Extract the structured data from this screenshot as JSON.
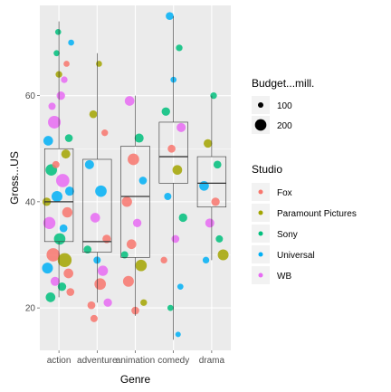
{
  "chart_data": {
    "type": "scatter",
    "subtype": "jitter-with-boxplot",
    "xlabel": "Genre",
    "ylabel": "Gross...US",
    "categories": [
      "action",
      "adventure",
      "animation",
      "comedy",
      "drama"
    ],
    "y_ticks": [
      20,
      40,
      60
    ],
    "ylim": [
      12,
      77
    ],
    "grid": true,
    "legend_position": "right",
    "size_legend": {
      "title": "Budget...mill.",
      "entries": [
        {
          "label": "100",
          "value": 100
        },
        {
          "label": "200",
          "value": 200
        }
      ]
    },
    "color_legend": {
      "title": "Studio",
      "entries": [
        {
          "label": "Fox",
          "color": "#F8766D"
        },
        {
          "label": "Paramount Pictures",
          "color": "#A3A500"
        },
        {
          "label": "Sony",
          "color": "#00BF7D"
        },
        {
          "label": "Universal",
          "color": "#00B0F6"
        },
        {
          "label": "WB",
          "color": "#E76BF3"
        }
      ]
    },
    "boxplots": [
      {
        "category": "action",
        "min": 22,
        "q1": 32.5,
        "median": 40,
        "q3": 50,
        "max": 74
      },
      {
        "category": "adventure",
        "min": 21,
        "q1": 30.5,
        "median": 32.5,
        "q3": 48,
        "max": 68
      },
      {
        "category": "animation",
        "min": 18.5,
        "q1": 29.5,
        "median": 41,
        "q3": 50.5,
        "max": 60
      },
      {
        "category": "comedy",
        "min": 14,
        "q1": 43.5,
        "median": 48.5,
        "q3": 55,
        "max": 75
      },
      {
        "category": "drama",
        "min": 29,
        "q1": 39,
        "median": 43.5,
        "q3": 48.5,
        "max": 60
      }
    ],
    "points": [
      {
        "category": "action",
        "offset": -0.28,
        "y": 51.5,
        "studio": "Universal",
        "budget": 170
      },
      {
        "category": "action",
        "offset": -0.12,
        "y": 55,
        "studio": "WB",
        "budget": 220
      },
      {
        "category": "action",
        "offset": 0.05,
        "y": 60,
        "studio": "WB",
        "budget": 150
      },
      {
        "category": "action",
        "offset": 0.18,
        "y": 49,
        "studio": "Paramount Pictures",
        "budget": 160
      },
      {
        "category": "action",
        "offset": -0.2,
        "y": 46,
        "studio": "Sony",
        "budget": 200
      },
      {
        "category": "action",
        "offset": 0.1,
        "y": 44,
        "studio": "WB",
        "budget": 230
      },
      {
        "category": "action",
        "offset": -0.05,
        "y": 41,
        "studio": "Universal",
        "budget": 190
      },
      {
        "category": "action",
        "offset": 0.22,
        "y": 38,
        "studio": "Fox",
        "budget": 180
      },
      {
        "category": "action",
        "offset": -0.25,
        "y": 36,
        "studio": "WB",
        "budget": 210
      },
      {
        "category": "action",
        "offset": 0.02,
        "y": 33,
        "studio": "Sony",
        "budget": 200
      },
      {
        "category": "action",
        "offset": -0.15,
        "y": 30,
        "studio": "Fox",
        "budget": 230
      },
      {
        "category": "action",
        "offset": 0.15,
        "y": 29,
        "studio": "Paramount Pictures",
        "budget": 240
      },
      {
        "category": "action",
        "offset": -0.3,
        "y": 27.5,
        "studio": "Universal",
        "budget": 190
      },
      {
        "category": "action",
        "offset": 0.25,
        "y": 26.5,
        "studio": "Fox",
        "budget": 170
      },
      {
        "category": "action",
        "offset": -0.1,
        "y": 25,
        "studio": "WB",
        "budget": 160
      },
      {
        "category": "action",
        "offset": 0.08,
        "y": 24,
        "studio": "Sony",
        "budget": 150
      },
      {
        "category": "action",
        "offset": -0.22,
        "y": 22,
        "studio": "Sony",
        "budget": 170
      },
      {
        "category": "action",
        "offset": 0.3,
        "y": 23,
        "studio": "Fox",
        "budget": 140
      },
      {
        "category": "action",
        "offset": 0.28,
        "y": 42,
        "studio": "Universal",
        "budget": 160
      },
      {
        "category": "action",
        "offset": -0.32,
        "y": 40,
        "studio": "Paramount Pictures",
        "budget": 150
      },
      {
        "category": "action",
        "offset": 0.12,
        "y": 35,
        "studio": "Universal",
        "budget": 140
      },
      {
        "category": "action",
        "offset": -0.08,
        "y": 47,
        "studio": "Fox",
        "budget": 130
      },
      {
        "category": "action",
        "offset": 0.26,
        "y": 52,
        "studio": "Sony",
        "budget": 140
      },
      {
        "category": "action",
        "offset": -0.18,
        "y": 58,
        "studio": "WB",
        "budget": 130
      },
      {
        "category": "action",
        "offset": 0.0,
        "y": 64,
        "studio": "Paramount Pictures",
        "budget": 120
      },
      {
        "category": "action",
        "offset": 0.2,
        "y": 66,
        "studio": "Fox",
        "budget": 110
      },
      {
        "category": "action",
        "offset": -0.02,
        "y": 72,
        "studio": "Sony",
        "budget": 110
      },
      {
        "category": "action",
        "offset": 0.32,
        "y": 70,
        "studio": "Universal",
        "budget": 110
      },
      {
        "category": "action",
        "offset": -0.06,
        "y": 68,
        "studio": "Sony",
        "budget": 110
      },
      {
        "category": "action",
        "offset": 0.14,
        "y": 63,
        "studio": "WB",
        "budget": 120
      },
      {
        "category": "adventure",
        "offset": -0.1,
        "y": 56.5,
        "studio": "Paramount Pictures",
        "budget": 140
      },
      {
        "category": "adventure",
        "offset": 0.05,
        "y": 66,
        "studio": "Paramount Pictures",
        "budget": 110
      },
      {
        "category": "adventure",
        "offset": 0.2,
        "y": 53,
        "studio": "Fox",
        "budget": 120
      },
      {
        "category": "adventure",
        "offset": -0.2,
        "y": 47,
        "studio": "Universal",
        "budget": 160
      },
      {
        "category": "adventure",
        "offset": 0.1,
        "y": 42,
        "studio": "Universal",
        "budget": 200
      },
      {
        "category": "adventure",
        "offset": -0.05,
        "y": 37,
        "studio": "WB",
        "budget": 170
      },
      {
        "category": "adventure",
        "offset": 0.25,
        "y": 33,
        "studio": "Fox",
        "budget": 150
      },
      {
        "category": "adventure",
        "offset": -0.25,
        "y": 31,
        "studio": "Sony",
        "budget": 140
      },
      {
        "category": "adventure",
        "offset": 0.15,
        "y": 27,
        "studio": "WB",
        "budget": 180
      },
      {
        "category": "adventure",
        "offset": 0.08,
        "y": 24.5,
        "studio": "Fox",
        "budget": 200
      },
      {
        "category": "adventure",
        "offset": -0.15,
        "y": 20.5,
        "studio": "Fox",
        "budget": 140
      },
      {
        "category": "adventure",
        "offset": -0.08,
        "y": 18,
        "studio": "Fox",
        "budget": 130
      },
      {
        "category": "adventure",
        "offset": 0.28,
        "y": 21,
        "studio": "WB",
        "budget": 150
      },
      {
        "category": "adventure",
        "offset": 0.0,
        "y": 29,
        "studio": "Universal",
        "budget": 130
      },
      {
        "category": "animation",
        "offset": -0.15,
        "y": 59,
        "studio": "WB",
        "budget": 170
      },
      {
        "category": "animation",
        "offset": 0.1,
        "y": 52,
        "studio": "Sony",
        "budget": 160
      },
      {
        "category": "animation",
        "offset": -0.05,
        "y": 48,
        "studio": "Fox",
        "budget": 200
      },
      {
        "category": "animation",
        "offset": 0.2,
        "y": 44,
        "studio": "Universal",
        "budget": 140
      },
      {
        "category": "animation",
        "offset": -0.22,
        "y": 40,
        "studio": "Fox",
        "budget": 180
      },
      {
        "category": "animation",
        "offset": 0.05,
        "y": 36,
        "studio": "WB",
        "budget": 150
      },
      {
        "category": "animation",
        "offset": -0.1,
        "y": 32,
        "studio": "Fox",
        "budget": 170
      },
      {
        "category": "animation",
        "offset": 0.15,
        "y": 28,
        "studio": "Paramount Pictures",
        "budget": 200
      },
      {
        "category": "animation",
        "offset": -0.18,
        "y": 25,
        "studio": "Fox",
        "budget": 190
      },
      {
        "category": "animation",
        "offset": 0.22,
        "y": 21,
        "studio": "Paramount Pictures",
        "budget": 120
      },
      {
        "category": "animation",
        "offset": 0.0,
        "y": 19.5,
        "studio": "Fox",
        "budget": 140
      },
      {
        "category": "animation",
        "offset": -0.28,
        "y": 30,
        "studio": "Sony",
        "budget": 130
      },
      {
        "category": "comedy",
        "offset": -0.1,
        "y": 75,
        "studio": "Universal",
        "budget": 140
      },
      {
        "category": "comedy",
        "offset": 0.15,
        "y": 69,
        "studio": "Sony",
        "budget": 120
      },
      {
        "category": "comedy",
        "offset": 0.0,
        "y": 63,
        "studio": "Universal",
        "budget": 110
      },
      {
        "category": "comedy",
        "offset": -0.2,
        "y": 57,
        "studio": "Sony",
        "budget": 150
      },
      {
        "category": "comedy",
        "offset": 0.2,
        "y": 54,
        "studio": "WB",
        "budget": 160
      },
      {
        "category": "comedy",
        "offset": -0.05,
        "y": 50,
        "studio": "Fox",
        "budget": 140
      },
      {
        "category": "comedy",
        "offset": 0.1,
        "y": 46,
        "studio": "Paramount Pictures",
        "budget": 170
      },
      {
        "category": "comedy",
        "offset": -0.15,
        "y": 41,
        "studio": "Universal",
        "budget": 130
      },
      {
        "category": "comedy",
        "offset": 0.25,
        "y": 37,
        "studio": "Sony",
        "budget": 150
      },
      {
        "category": "comedy",
        "offset": 0.05,
        "y": 33,
        "studio": "WB",
        "budget": 140
      },
      {
        "category": "comedy",
        "offset": -0.25,
        "y": 29,
        "studio": "Fox",
        "budget": 120
      },
      {
        "category": "comedy",
        "offset": 0.18,
        "y": 24,
        "studio": "Universal",
        "budget": 110
      },
      {
        "category": "comedy",
        "offset": -0.08,
        "y": 20,
        "studio": "Sony",
        "budget": 110
      },
      {
        "category": "comedy",
        "offset": 0.12,
        "y": 15,
        "studio": "Universal",
        "budget": 100
      },
      {
        "category": "drama",
        "offset": 0.05,
        "y": 60,
        "studio": "Sony",
        "budget": 120
      },
      {
        "category": "drama",
        "offset": -0.1,
        "y": 51,
        "studio": "Paramount Pictures",
        "budget": 150
      },
      {
        "category": "drama",
        "offset": 0.15,
        "y": 47,
        "studio": "Sony",
        "budget": 140
      },
      {
        "category": "drama",
        "offset": -0.2,
        "y": 43,
        "studio": "Universal",
        "budget": 170
      },
      {
        "category": "drama",
        "offset": 0.1,
        "y": 40,
        "studio": "Fox",
        "budget": 150
      },
      {
        "category": "drama",
        "offset": -0.05,
        "y": 36,
        "studio": "WB",
        "budget": 160
      },
      {
        "category": "drama",
        "offset": 0.2,
        "y": 33,
        "studio": "Sony",
        "budget": 130
      },
      {
        "category": "drama",
        "offset": 0.3,
        "y": 30,
        "studio": "Paramount Pictures",
        "budget": 190
      },
      {
        "category": "drama",
        "offset": -0.15,
        "y": 29,
        "studio": "Universal",
        "budget": 120
      }
    ]
  }
}
